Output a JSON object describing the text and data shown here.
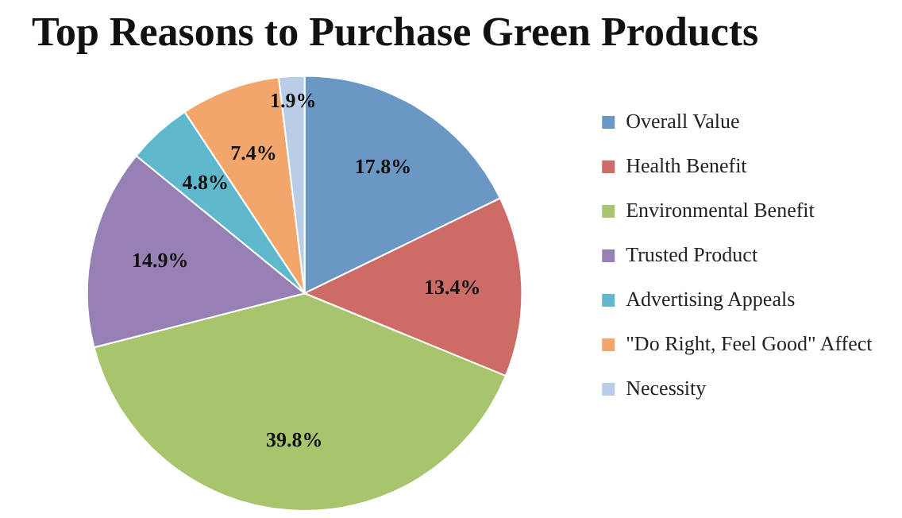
{
  "chart_data": {
    "type": "pie",
    "title": "Top Reasons to Purchase Green Products",
    "categories": [
      "Overall Value",
      "Health Benefit",
      "Environmental Benefit",
      "Trusted Product",
      "Advertising Appeals",
      "\"Do Right, Feel Good\" Affect",
      "Necessity"
    ],
    "values": [
      17.8,
      13.4,
      39.8,
      14.9,
      4.8,
      7.4,
      1.9
    ],
    "value_labels": [
      "17.8%",
      "13.4%",
      "39.8%",
      "14.9%",
      "4.8%",
      "7.4%",
      "1.9%"
    ],
    "colors": [
      "#6b97c5",
      "#cd6b67",
      "#a8c46c",
      "#9780b4",
      "#5fb8cc",
      "#f2a66c",
      "#b9cde6"
    ],
    "legend": "right"
  }
}
